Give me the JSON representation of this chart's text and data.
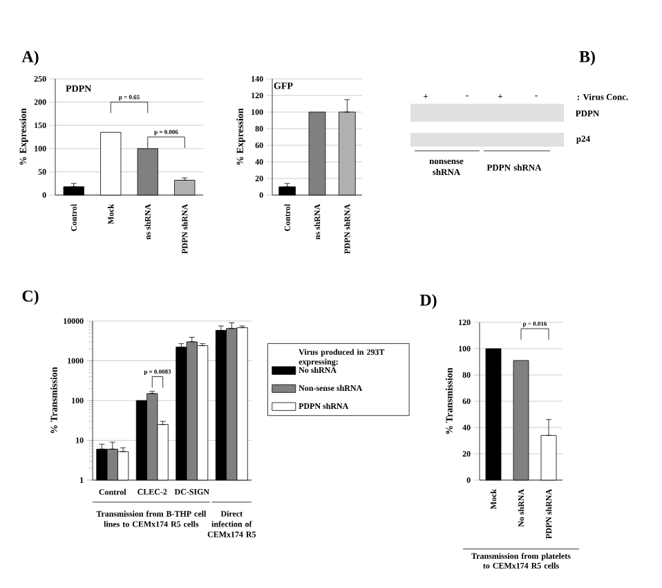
{
  "chart_data": [
    {
      "type": "bar",
      "title": "A)",
      "subtitle": "PDPN",
      "ylabel": "% Expression",
      "categories": [
        "Control",
        "Mock",
        "ns shRNA",
        "PDPN shRNA"
      ],
      "values": [
        18,
        135,
        100,
        32
      ],
      "colors": [
        "#000000",
        "#ffffff",
        "#808080",
        "#b0b0b0"
      ],
      "errors": [
        [
          18,
          25
        ],
        null,
        null,
        [
          32,
          37
        ]
      ],
      "ylim": [
        0,
        250
      ],
      "yticks": [
        0,
        50,
        100,
        150,
        200,
        250
      ],
      "grid": "y",
      "annotations": [
        "p = 0.65",
        "p = 0.006"
      ]
    },
    {
      "type": "bar",
      "title": "GFP",
      "ylabel": "% Expression",
      "categories": [
        "Control",
        "ns shRNA",
        "PDPN shRNA"
      ],
      "values": [
        10,
        100,
        100
      ],
      "colors": [
        "#000000",
        "#808080",
        "#b0b0b0"
      ],
      "errors": [
        [
          10,
          14
        ],
        null,
        [
          100,
          115
        ]
      ],
      "ylim": [
        0,
        140
      ],
      "yticks": [
        0,
        20,
        40,
        60,
        80,
        100,
        120,
        140
      ],
      "grid": "y"
    },
    {
      "type": "other",
      "title": "B)",
      "annotations": [
        "+",
        "-",
        "+",
        "-",
        ": Virus Conc.",
        "PDPN",
        "p24",
        "nonsense shRNA",
        "PDPN shRNA"
      ]
    },
    {
      "type": "bar",
      "title": "C)",
      "ylabel": "% Transmission",
      "log": "y",
      "legend": "right",
      "legend_title": "Virus produced in 293T expressing:",
      "categories": [
        "Control",
        "CLEC-2",
        "DC-SIGN",
        null
      ],
      "series": [
        {
          "name": "No shRNA",
          "color": "#000000",
          "values": [
            6,
            100,
            2200,
            5800
          ],
          "errors": [
            [
              6,
              8
            ],
            null,
            [
              2200,
              2700
            ],
            [
              5800,
              7500
            ]
          ]
        },
        {
          "name": "Non-sense shRNA",
          "color": "#808080",
          "values": [
            6,
            150,
            3000,
            6500
          ],
          "errors": [
            [
              6,
              9
            ],
            [
              150,
              170
            ],
            [
              3000,
              3900
            ],
            [
              6500,
              9000
            ]
          ]
        },
        {
          "name": "PDPN shRNA",
          "color": "#ffffff",
          "values": [
            5.2,
            25,
            2400,
            6800
          ],
          "errors": [
            [
              5.2,
              6.5
            ],
            [
              25,
              30
            ],
            [
              2400,
              2700
            ],
            [
              6800,
              7500
            ]
          ]
        }
      ],
      "ylim": [
        1,
        10000
      ],
      "yticks": [
        1,
        10,
        100,
        1000,
        10000
      ],
      "grid": "y",
      "annotations": [
        "p = 0.0083",
        "Transmission from B-THP cell lines to CEMx174 R5 cells",
        "Direct infection of CEMx174 R5"
      ]
    },
    {
      "type": "bar",
      "title": "D)",
      "ylabel": "% Transmission",
      "xlabel": "Transmission from platelets to CEMx174 R5 cells",
      "categories": [
        "Mock",
        "No shRNA",
        "PDPN shRNA"
      ],
      "values": [
        100,
        91,
        34
      ],
      "colors": [
        "#000000",
        "#808080",
        "#ffffff"
      ],
      "errors": [
        null,
        null,
        [
          34,
          46
        ]
      ],
      "ylim": [
        0,
        120
      ],
      "yticks": [
        0,
        20,
        40,
        60,
        80,
        100,
        120
      ],
      "grid": "y",
      "annotations": [
        "p = 0.016"
      ]
    }
  ]
}
